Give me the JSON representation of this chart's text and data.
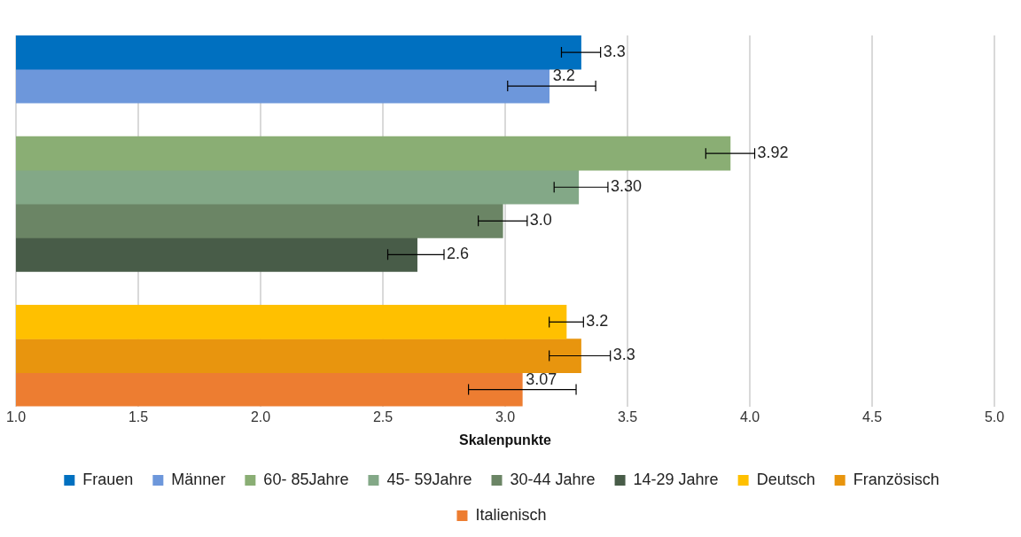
{
  "chart_data": {
    "type": "bar",
    "orientation": "horizontal",
    "xlabel": "Skalenpunkte",
    "categories": [
      null,
      null,
      null,
      null,
      null,
      null,
      null,
      null,
      null,
      null,
      null
    ],
    "xlim": [
      1.0,
      5.0
    ],
    "xticks": [
      {
        "value": 1,
        "label": "1.0"
      },
      {
        "value": 1.5,
        "label": "1.5"
      },
      {
        "value": 2,
        "label": "2.0"
      },
      {
        "value": 2.5,
        "label": "2.5"
      },
      {
        "value": 3,
        "label": "3.0"
      },
      {
        "value": 3.5,
        "label": "3.5"
      },
      {
        "value": 4,
        "label": "4.0"
      },
      {
        "value": 4.5,
        "label": "4.5"
      },
      {
        "value": 5,
        "label": "5.0"
      }
    ],
    "grid": "x",
    "legend": "bottom",
    "series": [
      {
        "name": "Frauen",
        "color": "#0070c0",
        "values": [
          3.31,
          null,
          null,
          null,
          null,
          null,
          null,
          null,
          null,
          null,
          null
        ],
        "errors": [
          [
            3.23,
            3.39
          ],
          null,
          null,
          null,
          null,
          null,
          null,
          null,
          null,
          null,
          null
        ],
        "value_labels": [
          "3.3",
          null,
          null,
          null,
          null,
          null,
          null,
          null,
          null,
          null,
          null
        ]
      },
      {
        "name": "Männer",
        "color": "#6d97db",
        "values": [
          null,
          3.18,
          null,
          null,
          null,
          null,
          null,
          null,
          null,
          null,
          null
        ],
        "errors": [
          null,
          [
            3.01,
            3.37
          ],
          null,
          null,
          null,
          null,
          null,
          null,
          null,
          null,
          null
        ],
        "value_labels": [
          null,
          "3.2",
          null,
          null,
          null,
          null,
          null,
          null,
          null,
          null,
          null
        ]
      },
      {
        "name": "60- 85Jahre",
        "color": "#8aae74",
        "values": [
          null,
          null,
          null,
          3.92,
          null,
          null,
          null,
          null,
          null,
          null,
          null
        ],
        "errors": [
          null,
          null,
          null,
          [
            3.82,
            4.02
          ],
          null,
          null,
          null,
          null,
          null,
          null,
          null
        ],
        "value_labels": [
          null,
          null,
          null,
          "3.92",
          null,
          null,
          null,
          null,
          null,
          null,
          null
        ]
      },
      {
        "name": "45- 59Jahre",
        "color": "#83a887",
        "values": [
          null,
          null,
          null,
          null,
          3.3,
          null,
          null,
          null,
          null,
          null,
          null
        ],
        "errors": [
          null,
          null,
          null,
          null,
          [
            3.2,
            3.42
          ],
          null,
          null,
          null,
          null,
          null,
          null
        ],
        "value_labels": [
          null,
          null,
          null,
          null,
          "3.30",
          null,
          null,
          null,
          null,
          null,
          null
        ]
      },
      {
        "name": "30-44 Jahre",
        "color": "#6b8565",
        "values": [
          null,
          null,
          null,
          null,
          null,
          2.99,
          null,
          null,
          null,
          null,
          null
        ],
        "errors": [
          null,
          null,
          null,
          null,
          null,
          [
            2.89,
            3.09
          ],
          null,
          null,
          null,
          null,
          null
        ],
        "value_labels": [
          null,
          null,
          null,
          null,
          null,
          "3.0",
          null,
          null,
          null,
          null,
          null
        ]
      },
      {
        "name": "14-29 Jahre",
        "color": "#485c48",
        "values": [
          null,
          null,
          null,
          null,
          null,
          null,
          2.64,
          null,
          null,
          null,
          null
        ],
        "errors": [
          null,
          null,
          null,
          null,
          null,
          null,
          [
            2.52,
            2.75
          ],
          null,
          null,
          null,
          null
        ],
        "value_labels": [
          null,
          null,
          null,
          null,
          null,
          null,
          "2.6",
          null,
          null,
          null,
          null
        ]
      },
      {
        "name": "Deutsch",
        "color": "#ffc000",
        "values": [
          null,
          null,
          null,
          null,
          null,
          null,
          null,
          null,
          3.25,
          null,
          null
        ],
        "errors": [
          null,
          null,
          null,
          null,
          null,
          null,
          null,
          null,
          [
            3.18,
            3.32
          ],
          null,
          null
        ],
        "value_labels": [
          null,
          null,
          null,
          null,
          null,
          null,
          null,
          null,
          "3.2",
          null,
          null
        ]
      },
      {
        "name": "Französisch",
        "color": "#e8950e",
        "values": [
          null,
          null,
          null,
          null,
          null,
          null,
          null,
          null,
          null,
          3.31,
          null
        ],
        "errors": [
          null,
          null,
          null,
          null,
          null,
          null,
          null,
          null,
          null,
          [
            3.18,
            3.43
          ],
          null
        ],
        "value_labels": [
          null,
          null,
          null,
          null,
          null,
          null,
          null,
          null,
          null,
          "3.3",
          null
        ]
      },
      {
        "name": "Italienisch",
        "color": "#ed7d31",
        "values": [
          null,
          null,
          null,
          null,
          null,
          null,
          null,
          null,
          null,
          null,
          3.07
        ],
        "errors": [
          null,
          null,
          null,
          null,
          null,
          null,
          null,
          null,
          null,
          null,
          [
            2.85,
            3.29
          ]
        ],
        "value_labels": [
          null,
          null,
          null,
          null,
          null,
          null,
          null,
          null,
          null,
          null,
          "3.07"
        ]
      }
    ]
  }
}
